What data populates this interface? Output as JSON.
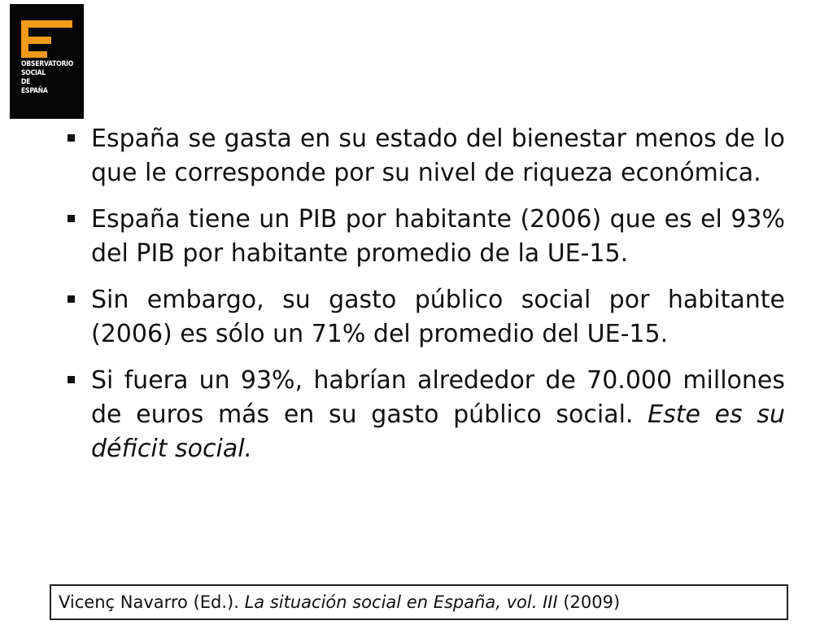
{
  "logo": {
    "lines": [
      "OBSERVATORIO",
      "SOCIAL",
      "DE",
      "ESPAÑA"
    ],
    "colors": {
      "background": "#050505",
      "accent": "#f39a1a",
      "text": "#ffffff"
    }
  },
  "bullets": [
    {
      "text": "España se gasta en su estado del bienestar menos de lo que le corresponde por su nivel de riqueza económica."
    },
    {
      "text": "España tiene un PIB por habitante (2006) que es el 93% del PIB por habitante promedio de la UE-15."
    },
    {
      "text": "Sin embargo, su gasto público social por habitante (2006) es sólo un 71% del promedio del UE-15."
    },
    {
      "text": "Si fuera un 93%, habrían alrededor de 70.000 millones de euros más en su gasto público social.",
      "emphasis": "Este es su déficit social."
    }
  ],
  "citation": {
    "author": "Vicenç Navarro (Ed.). ",
    "title": "La situación social en España, vol. III",
    "year": " (2009)"
  }
}
